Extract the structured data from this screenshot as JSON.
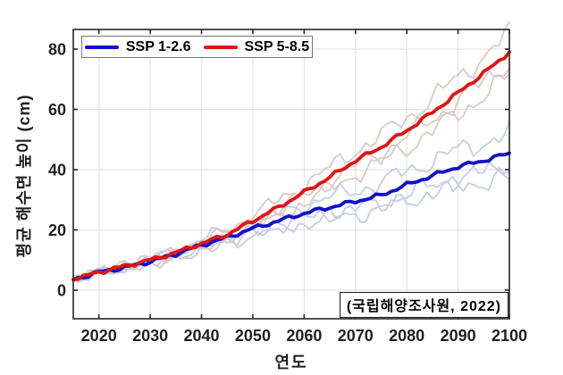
{
  "figure": {
    "background": "#ffffff"
  },
  "chart_data": {
    "type": "line",
    "title": "",
    "xlabel": "연도",
    "ylabel": "평균 해수면 높이 (cm)",
    "xlim": [
      2015,
      2100
    ],
    "ylim": [
      -9.5,
      86.5
    ],
    "xticks": [
      2020,
      2030,
      2040,
      2050,
      2060,
      2070,
      2080,
      2090,
      2100
    ],
    "yticks": [
      0,
      20,
      40,
      60,
      80
    ],
    "grid": true,
    "legend_position": "top-left",
    "x": [
      2015,
      2020,
      2025,
      2030,
      2035,
      2040,
      2045,
      2050,
      2055,
      2060,
      2065,
      2070,
      2075,
      2080,
      2085,
      2090,
      2095,
      2100
    ],
    "series": [
      {
        "name": "SSP 1-2.6",
        "color": "#1111cc",
        "values": [
          3.5,
          6.0,
          7.5,
          9.5,
          12.0,
          15.0,
          17.5,
          20.5,
          23.0,
          25.5,
          27.5,
          29.5,
          31.5,
          35.0,
          38.0,
          41.0,
          43.0,
          45.5
        ]
      },
      {
        "name": "SSP 5-8.5",
        "color": "#e11414",
        "values": [
          3.5,
          6.0,
          8.0,
          10.0,
          12.5,
          15.5,
          18.5,
          23.0,
          27.5,
          32.5,
          37.5,
          43.0,
          47.5,
          53.0,
          59.0,
          65.5,
          72.0,
          79.0
        ]
      }
    ],
    "ensembles": [
      {
        "series_index": 0,
        "series": "SSP 1-2.6",
        "color": "#c4cee1",
        "end_values": [
          52,
          41,
          38
        ]
      },
      {
        "series_index": 1,
        "series": "SSP 5-8.5",
        "color": "#d9cac6",
        "end_values": [
          85,
          76,
          71
        ]
      }
    ],
    "annotation": "(국립해양조사원, 2022)"
  },
  "legend": {
    "items": [
      {
        "label": "SSP 1-2.6",
        "color": "#1111cc"
      },
      {
        "label": "SSP 5-8.5",
        "color": "#e11414"
      }
    ]
  },
  "annotation": {
    "text": "(국립해양조사원, 2022)"
  },
  "axes": {
    "spine_color": "#262626",
    "grid_color": "#e4e4e4",
    "tick_label_color": "#1f1f1f"
  }
}
